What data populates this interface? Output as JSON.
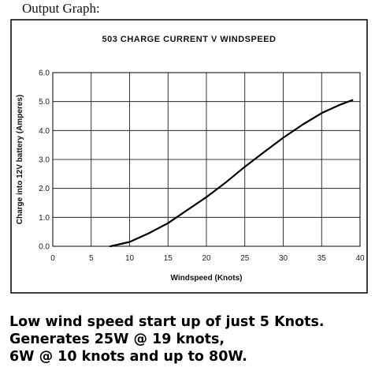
{
  "heading": "Output Graph:",
  "chart_data": {
    "type": "line",
    "title": "503 CHARGE CURRENT V WINDSPEED",
    "xlabel": "Windspeed (Knots)",
    "ylabel": "Charge into 12V battery (Amperes)",
    "xlim": [
      0,
      40
    ],
    "ylim": [
      0,
      6
    ],
    "x_ticks": [
      "0",
      "5",
      "10",
      "15",
      "20",
      "25",
      "30",
      "35",
      "40"
    ],
    "y_ticks": [
      "0.0",
      "1.0",
      "2.0",
      "3.0",
      "4.0",
      "5.0",
      "6.0"
    ],
    "grid": true,
    "series": [
      {
        "x": [
          7.5,
          10,
          12.5,
          15,
          17.5,
          20,
          22.5,
          25,
          27.5,
          30,
          32.5,
          35,
          37.5,
          39
        ],
        "values": [
          0.0,
          0.15,
          0.45,
          0.8,
          1.25,
          1.7,
          2.2,
          2.75,
          3.25,
          3.75,
          4.2,
          4.6,
          4.9,
          5.05
        ]
      }
    ]
  },
  "caption": [
    "Low wind speed start up of just 5 Knots.",
    "Generates 25W @ 19 knots,",
    "6W @ 10 knots and up to 80W."
  ]
}
